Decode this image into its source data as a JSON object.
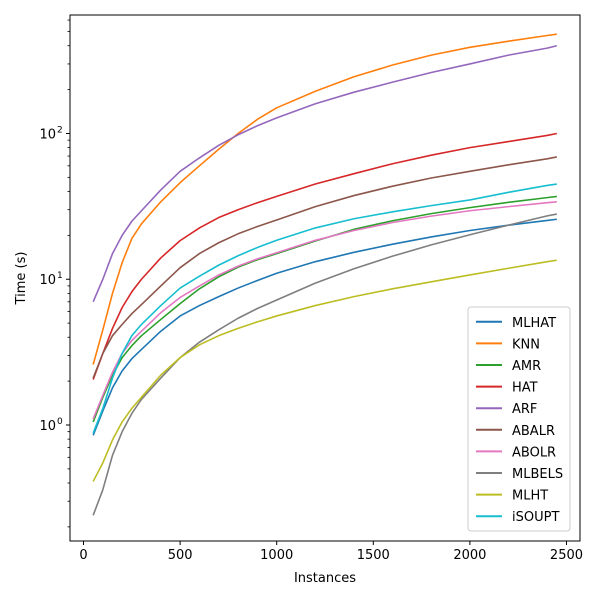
{
  "chart_data": {
    "type": "line",
    "xlabel": "Instances",
    "ylabel": "Time (s)",
    "yscale": "log",
    "xlim": [
      -70,
      2570
    ],
    "ylim": [
      0.16,
      650
    ],
    "xticks": [
      0,
      500,
      1000,
      1500,
      2000,
      2500
    ],
    "xtick_labels": [
      "0",
      "500",
      "1000",
      "1500",
      "2000",
      "2500"
    ],
    "yticks": [
      1,
      10,
      100
    ],
    "ytick_labels": [
      "10",
      "10",
      "10"
    ],
    "ytick_exponents": [
      "0",
      "1",
      "2"
    ],
    "grid": false,
    "legend_position": "lower-right",
    "x": [
      50,
      100,
      150,
      200,
      250,
      300,
      400,
      500,
      600,
      700,
      800,
      900,
      1000,
      1200,
      1400,
      1600,
      1800,
      2000,
      2200,
      2400,
      2450
    ],
    "series": [
      {
        "name": "MLHAT",
        "color": "#1f77b4",
        "values": [
          0.85,
          1.25,
          1.8,
          2.35,
          2.85,
          3.3,
          4.4,
          5.6,
          6.6,
          7.6,
          8.7,
          9.8,
          11,
          13.2,
          15.3,
          17.4,
          19.5,
          21.6,
          23.5,
          25.3,
          25.8
        ]
      },
      {
        "name": "KNN",
        "color": "#ff7f0e",
        "values": [
          2.6,
          4.5,
          8,
          13,
          19,
          24,
          34,
          46,
          60,
          78,
          100,
          125,
          150,
          195,
          245,
          295,
          345,
          390,
          430,
          470,
          480
        ]
      },
      {
        "name": "AMR",
        "color": "#2ca02c",
        "values": [
          1.05,
          1.55,
          2.2,
          2.9,
          3.5,
          4.1,
          5.3,
          6.8,
          8.6,
          10.4,
          12.1,
          13.6,
          15,
          18.3,
          22,
          25.2,
          28.2,
          31,
          33.7,
          36.3,
          37
        ]
      },
      {
        "name": "HAT",
        "color": "#d62728",
        "values": [
          2.05,
          3.1,
          4.6,
          6.4,
          8.2,
          10,
          14,
          18.4,
          22.5,
          26.5,
          30,
          33.5,
          37,
          45,
          53,
          62,
          71,
          80,
          88,
          97,
          100
        ]
      },
      {
        "name": "ARF",
        "color": "#9467bd",
        "values": [
          7,
          10,
          15,
          20,
          25,
          29.5,
          41,
          55,
          68,
          83,
          98,
          113,
          128,
          160,
          192,
          225,
          262,
          300,
          345,
          385,
          400
        ]
      },
      {
        "name": "ABALR",
        "color": "#8c564b",
        "values": [
          2.1,
          3.1,
          4.1,
          4.9,
          5.8,
          6.7,
          9,
          12,
          15,
          17.8,
          20.5,
          23,
          25.5,
          31.5,
          37.5,
          43.5,
          49.5,
          55,
          61,
          67,
          69
        ]
      },
      {
        "name": "ABOLR",
        "color": "#e377c2",
        "values": [
          1.1,
          1.6,
          2.3,
          3.1,
          3.8,
          4.4,
          5.9,
          7.5,
          9,
          10.7,
          12.3,
          13.8,
          15.2,
          18.5,
          21.6,
          24.5,
          27.1,
          29.5,
          31.5,
          33.5,
          34
        ]
      },
      {
        "name": "MLBELS",
        "color": "#7f7f7f",
        "values": [
          0.24,
          0.36,
          0.62,
          0.9,
          1.2,
          1.5,
          2.1,
          2.9,
          3.7,
          4.5,
          5.4,
          6.3,
          7.2,
          9.4,
          11.8,
          14.4,
          17.2,
          20.2,
          23.5,
          27.2,
          28
        ]
      },
      {
        "name": "MLHT",
        "color": "#bcbd22",
        "values": [
          0.41,
          0.55,
          0.79,
          1.05,
          1.3,
          1.55,
          2.2,
          2.9,
          3.55,
          4.1,
          4.6,
          5.1,
          5.6,
          6.6,
          7.6,
          8.6,
          9.6,
          10.7,
          11.9,
          13.2,
          13.5
        ]
      },
      {
        "name": "iSOUPT",
        "color": "#17becf",
        "values": [
          0.88,
          1.3,
          2.1,
          3.1,
          4.1,
          4.9,
          6.6,
          8.7,
          10.5,
          12.5,
          14.5,
          16.5,
          18.5,
          22.5,
          26,
          29,
          32,
          35,
          39.5,
          44,
          45
        ]
      }
    ]
  }
}
